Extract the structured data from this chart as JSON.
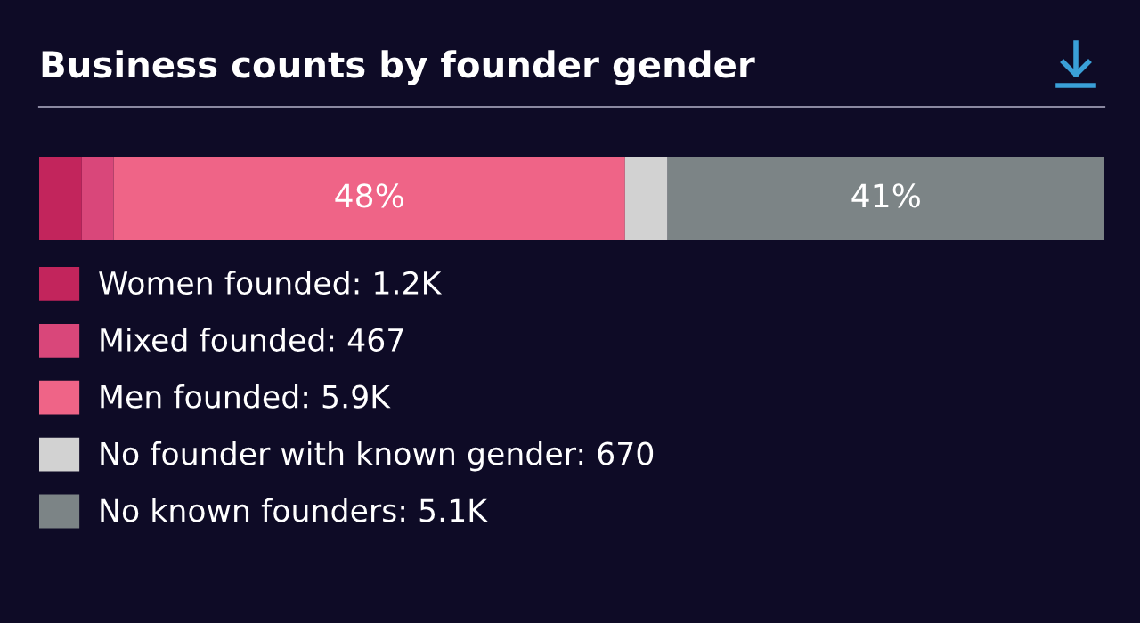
{
  "chart_data": {
    "type": "bar",
    "title": "Business counts by founder gender",
    "orientation": "horizontal",
    "stacked": true,
    "categories": [
      null
    ],
    "xlim": [
      0,
      100
    ],
    "tick_labels": false,
    "legend": "bottom",
    "grid": false,
    "series": [
      {
        "name": "Women founded: 1.2K",
        "color": "#c2255c",
        "values": [
          4
        ]
      },
      {
        "name": "Mixed founded: 467",
        "color": "#d9477a",
        "values": [
          3
        ]
      },
      {
        "name": "Men founded: 5.9K",
        "color": "#ef6487",
        "values": [
          48
        ],
        "value_labels": [
          "48%"
        ]
      },
      {
        "name": "No founder with known gender: 670",
        "color": "#d2d2d2",
        "values": [
          4
        ]
      },
      {
        "name": "No known founders: 5.1K",
        "color": "#7c8486",
        "values": [
          41
        ],
        "value_labels": [
          "41%"
        ]
      }
    ]
  }
}
